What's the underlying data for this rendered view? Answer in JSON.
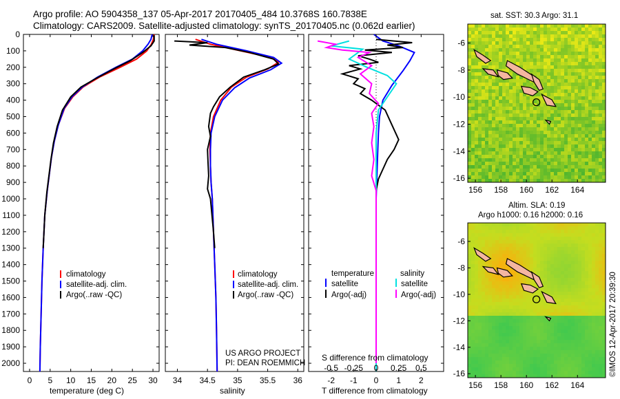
{
  "header": {
    "line1": "Argo profile: AO 5904358_137 05-Apr-2017 20170405_484 10.3768S 160.7838E",
    "line2": "Climatology: CARS2009. Satellite-adjusted climatology: synTS_20170405.nc (0.062d earlier)"
  },
  "colors": {
    "climatology": "#ff0000",
    "satellite": "#0000ff",
    "argo": "#000000",
    "satellite_s": "#00e0e0",
    "argo_s": "#ff00ff",
    "land": "#f4b6a0"
  },
  "chart_data": [
    {
      "type": "line",
      "id": "temperature",
      "xlabel": "temperature (deg C)",
      "xticks": [
        0,
        5,
        10,
        15,
        20,
        25,
        30
      ],
      "xlim": [
        -1.5,
        31.5
      ],
      "ylim": [
        2050,
        0
      ],
      "yticks": [
        0,
        100,
        200,
        300,
        400,
        500,
        600,
        700,
        800,
        900,
        1000,
        1100,
        1200,
        1300,
        1400,
        1500,
        1600,
        1700,
        1800,
        1900,
        2000
      ],
      "legend": [
        "climatology",
        "satellite-adj. clim.",
        "Argo(..raw -QC)"
      ],
      "series": [
        {
          "name": "climatology",
          "color": "#ff0000",
          "points": [
            [
              30.3,
              0
            ],
            [
              30.1,
              30
            ],
            [
              29.6,
              60
            ],
            [
              28.5,
              100
            ],
            [
              26,
              150
            ],
            [
              22,
              200
            ],
            [
              17,
              260
            ],
            [
              13,
              320
            ],
            [
              10.5,
              380
            ],
            [
              8.5,
              450
            ],
            [
              7,
              550
            ],
            [
              6,
              650
            ],
            [
              5.3,
              750
            ],
            [
              4.8,
              850
            ],
            [
              4.3,
              950
            ],
            [
              3.7,
              1100
            ],
            [
              3.3,
              1300
            ],
            [
              3,
              1500
            ],
            [
              2.8,
              1700
            ],
            [
              2.6,
              1900
            ],
            [
              2.5,
              2050
            ]
          ]
        },
        {
          "name": "satellite-adj. clim.",
          "color": "#0000ff",
          "points": [
            [
              29.8,
              0
            ],
            [
              29.5,
              30
            ],
            [
              28.8,
              60
            ],
            [
              27.5,
              100
            ],
            [
              25,
              150
            ],
            [
              21,
              200
            ],
            [
              16.5,
              260
            ],
            [
              12.8,
              320
            ],
            [
              10.3,
              380
            ],
            [
              8.4,
              450
            ],
            [
              7,
              550
            ],
            [
              6,
              650
            ],
            [
              5.3,
              750
            ],
            [
              4.8,
              850
            ],
            [
              4.3,
              950
            ],
            [
              3.7,
              1100
            ],
            [
              3.3,
              1300
            ],
            [
              3,
              1500
            ],
            [
              2.8,
              1700
            ],
            [
              2.6,
              1900
            ],
            [
              2.5,
              2050
            ]
          ]
        },
        {
          "name": "Argo(..raw -QC)",
          "color": "#000000",
          "points": [
            [
              30.3,
              5
            ],
            [
              30.3,
              40
            ],
            [
              29.5,
              70
            ],
            [
              27.5,
              110
            ],
            [
              24.5,
              160
            ],
            [
              20.5,
              210
            ],
            [
              16,
              270
            ],
            [
              12.5,
              320
            ],
            [
              10,
              380
            ],
            [
              8,
              460
            ],
            [
              6.7,
              560
            ],
            [
              5.8,
              660
            ],
            [
              5.2,
              760
            ],
            [
              4.7,
              860
            ],
            [
              4.2,
              960
            ],
            [
              3.7,
              1100
            ],
            [
              3.3,
              1300
            ]
          ]
        }
      ]
    },
    {
      "type": "line",
      "id": "salinity",
      "xlabel": "salinity",
      "xticks": [
        34,
        34.5,
        35,
        35.5,
        36
      ],
      "xlim": [
        33.8,
        36.1
      ],
      "ylim": [
        2050,
        0
      ],
      "legend": [
        "climatology",
        "satellite-adj. clim.",
        "Argo(..raw -QC)"
      ],
      "series": [
        {
          "name": "climatology",
          "color": "#ff0000",
          "points": [
            [
              34.3,
              30
            ],
            [
              34.55,
              60
            ],
            [
              35.05,
              100
            ],
            [
              35.55,
              140
            ],
            [
              35.68,
              170
            ],
            [
              35.5,
              210
            ],
            [
              35.15,
              260
            ],
            [
              34.9,
              320
            ],
            [
              34.72,
              400
            ],
            [
              34.6,
              500
            ],
            [
              34.55,
              600
            ],
            [
              34.54,
              700
            ],
            [
              34.55,
              800
            ],
            [
              34.56,
              900
            ],
            [
              34.58,
              1000
            ],
            [
              34.6,
              1200
            ],
            [
              34.62,
              1400
            ],
            [
              34.64,
              1600
            ],
            [
              34.65,
              1800
            ],
            [
              34.66,
              2050
            ]
          ]
        },
        {
          "name": "satellite-adj. clim.",
          "color": "#0000ff",
          "points": [
            [
              34.4,
              30
            ],
            [
              34.65,
              60
            ],
            [
              35.15,
              100
            ],
            [
              35.6,
              140
            ],
            [
              35.73,
              175
            ],
            [
              35.55,
              215
            ],
            [
              35.2,
              265
            ],
            [
              34.95,
              325
            ],
            [
              34.75,
              400
            ],
            [
              34.62,
              500
            ],
            [
              34.56,
              600
            ],
            [
              34.55,
              700
            ],
            [
              34.55,
              800
            ],
            [
              34.56,
              900
            ],
            [
              34.58,
              1000
            ],
            [
              34.6,
              1200
            ],
            [
              34.62,
              1400
            ],
            [
              34.64,
              1600
            ],
            [
              34.65,
              1800
            ],
            [
              34.66,
              2050
            ]
          ]
        },
        {
          "name": "Argo(..raw -QC)",
          "color": "#000000",
          "points": [
            [
              33.95,
              40
            ],
            [
              34.5,
              50
            ],
            [
              34.2,
              65
            ],
            [
              34.8,
              80
            ],
            [
              35.2,
              110
            ],
            [
              35.6,
              150
            ],
            [
              35.68,
              180
            ],
            [
              35.45,
              215
            ],
            [
              35.1,
              260
            ],
            [
              34.88,
              320
            ],
            [
              34.7,
              380
            ],
            [
              34.6,
              440
            ],
            [
              34.55,
              480
            ],
            [
              34.52,
              560
            ],
            [
              34.55,
              620
            ],
            [
              34.5,
              700
            ],
            [
              34.51,
              780
            ],
            [
              34.52,
              860
            ],
            [
              34.5,
              940
            ],
            [
              34.55,
              1000
            ],
            [
              34.6,
              1200
            ],
            [
              34.62,
              1300
            ]
          ]
        }
      ]
    },
    {
      "type": "line",
      "id": "difference",
      "xlabel": "T difference from climatology",
      "xlabel_top": "S difference from climatology",
      "xticks": [
        -2,
        -1,
        0,
        1,
        2
      ],
      "xticks_s": [
        -0.5,
        -0.25,
        0,
        0.25,
        0.5
      ],
      "xlim": [
        -3,
        3
      ],
      "ylim": [
        2050,
        0
      ],
      "legend_header_t": "temperature",
      "legend_header_s": "salinity",
      "legend": [
        "satellite",
        "Argo(-adj)",
        "satellite",
        "Argo(-adj)"
      ],
      "series": [
        {
          "name": "satellite",
          "color": "#0000ff",
          "points": [
            [
              -0.1,
              0
            ],
            [
              0.3,
              40
            ],
            [
              1,
              70
            ],
            [
              1.7,
              110
            ],
            [
              1.5,
              160
            ],
            [
              1.2,
              220
            ],
            [
              0.7,
              310
            ],
            [
              0.3,
              400
            ],
            [
              0.15,
              500
            ],
            [
              0.1,
              600
            ],
            [
              0.05,
              800
            ],
            [
              0,
              1000
            ],
            [
              0,
              1400
            ],
            [
              0,
              2050
            ]
          ]
        },
        {
          "name": "Argo(-adj)",
          "color": "#000000",
          "points": [
            [
              0,
              30
            ],
            [
              0.8,
              40
            ],
            [
              1.6,
              50
            ],
            [
              0.5,
              65
            ],
            [
              1.2,
              80
            ],
            [
              -0.5,
              95
            ],
            [
              0.7,
              110
            ],
            [
              -0.8,
              130
            ],
            [
              -0.3,
              150
            ],
            [
              0.1,
              170
            ],
            [
              -1.2,
              190
            ],
            [
              -0.7,
              210
            ],
            [
              -1.5,
              240
            ],
            [
              -0.8,
              270
            ],
            [
              -1,
              300
            ],
            [
              -0.5,
              330
            ],
            [
              -0.7,
              360
            ],
            [
              -0.2,
              400
            ],
            [
              0.4,
              460
            ],
            [
              0.6,
              520
            ],
            [
              0.8,
              580
            ],
            [
              1,
              640
            ],
            [
              0.8,
              700
            ],
            [
              0.5,
              760
            ],
            [
              0.3,
              820
            ],
            [
              0.1,
              880
            ],
            [
              0,
              950
            ],
            [
              0,
              1200
            ],
            [
              0,
              1600
            ],
            [
              0,
              2000
            ]
          ]
        },
        {
          "name": "satellite",
          "color": "#00e0e0",
          "points": [
            [
              -1.2,
              40
            ],
            [
              -2,
              70
            ],
            [
              -0.6,
              90
            ],
            [
              -0.8,
              110
            ],
            [
              -1.2,
              150
            ],
            [
              -0.4,
              200
            ],
            [
              0.5,
              250
            ],
            [
              0.9,
              300
            ],
            [
              0.5,
              380
            ],
            [
              0.1,
              460
            ],
            [
              0,
              600
            ],
            [
              0,
              1000
            ],
            [
              0,
              2050
            ]
          ]
        },
        {
          "name": "Argo(-adj)",
          "color": "#ff00ff",
          "points": [
            [
              -2.6,
              40
            ],
            [
              -1.8,
              60
            ],
            [
              -2.2,
              80
            ],
            [
              -1.5,
              95
            ],
            [
              -0.3,
              110
            ],
            [
              -0.8,
              140
            ],
            [
              -0.2,
              190
            ],
            [
              -0.7,
              240
            ],
            [
              -0.2,
              300
            ],
            [
              -0.3,
              360
            ],
            [
              0.1,
              420
            ],
            [
              -0.2,
              480
            ],
            [
              -0.1,
              560
            ],
            [
              -0.2,
              660
            ],
            [
              -0.1,
              760
            ],
            [
              -0.2,
              860
            ],
            [
              0,
              950
            ],
            [
              0,
              1200
            ],
            [
              0,
              1600
            ],
            [
              0,
              2000
            ]
          ]
        }
      ]
    },
    {
      "type": "heatmap",
      "id": "sst_map",
      "title": "sat. SST: 30.3 Argo: 31.1",
      "xticks": [
        156,
        158,
        160,
        162,
        164
      ],
      "yticks": [
        -6,
        -8,
        -10,
        -12,
        -14,
        -16
      ],
      "xlim": [
        155.4,
        166.2
      ],
      "ylim": [
        -16.3,
        -4.6
      ],
      "marker": [
        160.78,
        -10.38
      ]
    },
    {
      "type": "heatmap",
      "id": "sla_map",
      "title1": "Altim. SLA: 0.19",
      "title2": "Argo h1000: 0.16 h2000: 0.16",
      "xticks": [
        156,
        158,
        160,
        162,
        164
      ],
      "yticks": [
        -6,
        -8,
        -10,
        -12,
        -14,
        -16
      ],
      "xlim": [
        155.4,
        166.2
      ],
      "ylim": [
        -16.3,
        -4.6
      ],
      "marker": [
        160.78,
        -10.38
      ]
    }
  ],
  "footer": {
    "project": "US ARGO PROJECT",
    "pi": "PI: DEAN ROEMMICH",
    "stamp": "©IMOS 12-Apr-2017 20:39:30"
  }
}
